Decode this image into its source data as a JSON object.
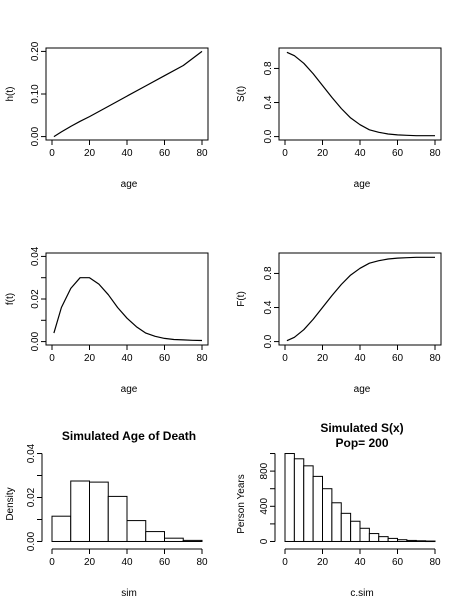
{
  "chart_data": [
    {
      "id": "hazard",
      "type": "line",
      "xlabel": "age",
      "ylabel": "h(t)",
      "xlim": [
        0,
        80
      ],
      "ylim": [
        0,
        0.2
      ],
      "xticks": [
        0,
        20,
        40,
        60,
        80
      ],
      "yticks": [
        0.0,
        0.1,
        0.2
      ],
      "ytick_labels": [
        "0.00",
        "0.10",
        "0.20"
      ],
      "x": [
        1,
        5,
        10,
        15,
        20,
        30,
        40,
        50,
        60,
        70,
        80
      ],
      "y": [
        0.0,
        0.011,
        0.024,
        0.036,
        0.047,
        0.071,
        0.095,
        0.119,
        0.143,
        0.167,
        0.2
      ]
    },
    {
      "id": "survival",
      "type": "line",
      "xlabel": "age",
      "ylabel": "S(t)",
      "xlim": [
        0,
        80
      ],
      "ylim": [
        0,
        1
      ],
      "xticks": [
        0,
        20,
        40,
        60,
        80
      ],
      "yticks": [
        0.0,
        0.4,
        0.8
      ],
      "ytick_labels": [
        "0.0",
        "0.4",
        "0.8"
      ],
      "x": [
        1,
        5,
        10,
        15,
        20,
        25,
        30,
        35,
        40,
        45,
        50,
        55,
        60,
        65,
        70,
        75,
        80
      ],
      "y": [
        0.99,
        0.95,
        0.86,
        0.74,
        0.6,
        0.46,
        0.33,
        0.22,
        0.14,
        0.08,
        0.05,
        0.03,
        0.02,
        0.015,
        0.01,
        0.01,
        0.01
      ]
    },
    {
      "id": "density",
      "type": "line",
      "xlabel": "age",
      "ylabel": "f(t)",
      "xlim": [
        0,
        80
      ],
      "ylim": [
        0,
        0.04
      ],
      "xticks": [
        0,
        20,
        40,
        60,
        80
      ],
      "yticks": [
        0.0,
        0.01,
        0.02,
        0.03,
        0.04
      ],
      "ytick_labels": [
        "0.00",
        "",
        "0.02",
        "",
        "0.04"
      ],
      "x": [
        1,
        5,
        10,
        15,
        20,
        25,
        30,
        35,
        40,
        45,
        50,
        55,
        60,
        65,
        70,
        75,
        80
      ],
      "y": [
        0.004,
        0.016,
        0.025,
        0.03,
        0.03,
        0.027,
        0.022,
        0.016,
        0.011,
        0.007,
        0.004,
        0.0025,
        0.0015,
        0.001,
        0.0008,
        0.0006,
        0.0005
      ]
    },
    {
      "id": "cdf",
      "type": "line",
      "xlabel": "age",
      "ylabel": "F(t)",
      "xlim": [
        0,
        80
      ],
      "ylim": [
        0,
        1
      ],
      "xticks": [
        0,
        20,
        40,
        60,
        80
      ],
      "yticks": [
        0.0,
        0.4,
        0.8
      ],
      "ytick_labels": [
        "0.0",
        "0.4",
        "0.8"
      ],
      "x": [
        1,
        5,
        10,
        15,
        20,
        25,
        30,
        35,
        40,
        45,
        50,
        55,
        60,
        65,
        70,
        75,
        80
      ],
      "y": [
        0.01,
        0.05,
        0.14,
        0.26,
        0.4,
        0.54,
        0.67,
        0.78,
        0.86,
        0.92,
        0.95,
        0.97,
        0.98,
        0.985,
        0.99,
        0.99,
        0.99
      ]
    },
    {
      "id": "sim-hist",
      "type": "bar",
      "title": "Simulated Age of Death",
      "xlabel": "sim",
      "ylabel": "Density",
      "xlim": [
        0,
        80
      ],
      "ylim": [
        0,
        0.04
      ],
      "xticks": [
        0,
        20,
        40,
        60,
        80
      ],
      "yticks": [
        0.0,
        0.01,
        0.02,
        0.03,
        0.04
      ],
      "ytick_labels": [
        "0.00",
        "",
        "0.02",
        "",
        "0.04"
      ],
      "bins": [
        [
          0,
          10
        ],
        [
          10,
          20
        ],
        [
          20,
          30
        ],
        [
          30,
          40
        ],
        [
          40,
          50
        ],
        [
          50,
          60
        ],
        [
          60,
          70
        ],
        [
          70,
          80
        ]
      ],
      "values": [
        0.0115,
        0.0275,
        0.027,
        0.0205,
        0.0095,
        0.0045,
        0.0015,
        0.0005
      ]
    },
    {
      "id": "csim-hist",
      "type": "bar",
      "title": "Simulated S(x)",
      "subtitle": "Pop= 200",
      "xlabel": "c.sim",
      "ylabel": "Person Years",
      "xlim": [
        0,
        80
      ],
      "ylim": [
        0,
        1000
      ],
      "xticks": [
        0,
        20,
        40,
        60,
        80
      ],
      "yticks": [
        0,
        200,
        400,
        600,
        800,
        1000
      ],
      "ytick_labels": [
        "0",
        "",
        "400",
        "",
        "800",
        ""
      ],
      "bins": [
        [
          0,
          5
        ],
        [
          5,
          10
        ],
        [
          10,
          15
        ],
        [
          15,
          20
        ],
        [
          20,
          25
        ],
        [
          25,
          30
        ],
        [
          30,
          35
        ],
        [
          35,
          40
        ],
        [
          40,
          45
        ],
        [
          45,
          50
        ],
        [
          50,
          55
        ],
        [
          55,
          60
        ],
        [
          60,
          65
        ],
        [
          65,
          70
        ],
        [
          70,
          75
        ],
        [
          75,
          80
        ]
      ],
      "values": [
        1000,
        940,
        860,
        740,
        600,
        440,
        320,
        230,
        150,
        90,
        55,
        35,
        20,
        12,
        8,
        5
      ]
    }
  ]
}
